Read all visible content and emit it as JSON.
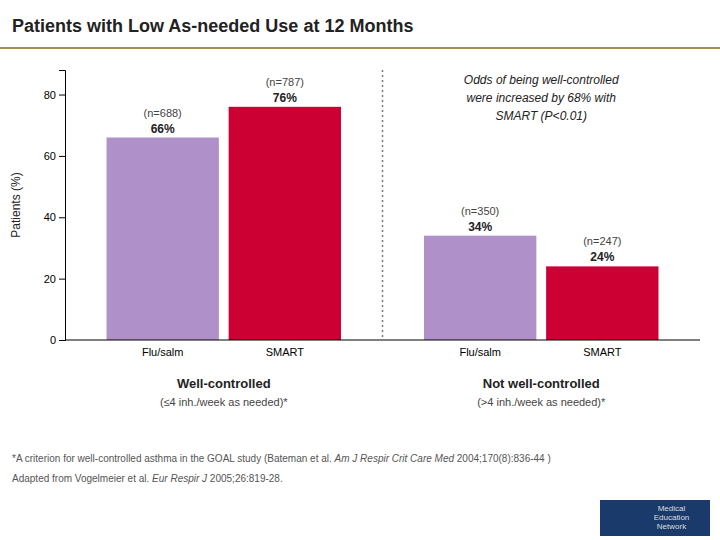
{
  "chart_data": {
    "type": "bar",
    "title": "Patients with Low As-needed Use at 12 Months",
    "ylabel": "Patients (%)",
    "categories": [
      "Well-controlled",
      "Not well-controlled"
    ],
    "category_sublabels": [
      "(≤4 inh./week as needed)*",
      "(>4 inh./week as needed)*"
    ],
    "series": [
      {
        "name": "Flu/salm",
        "color": "#b090c8",
        "values": [
          66,
          34
        ],
        "value_labels": [
          "66%",
          "34%"
        ],
        "n_labels": [
          "(n=688)",
          "(n=350)"
        ]
      },
      {
        "name": "SMART",
        "color": "#cc0033",
        "values": [
          76,
          24
        ],
        "value_labels": [
          "76%",
          "24%"
        ],
        "n_labels": [
          "(n=787)",
          "(n=247)"
        ]
      }
    ],
    "data_labels": true,
    "grid": false,
    "ylim": [
      0,
      88
    ],
    "yticks": [
      0,
      20,
      40,
      60,
      80
    ],
    "annotation": "Odds of being well-controlled\nwere increased by 68% with\nSMART (P<0.01)",
    "footnotes": [
      [
        "*A criterion for well-controlled asthma in the GOAL study (Bateman et al. ",
        "Am J Respir Crit Care Med",
        " 2004;170(8):836-44 )"
      ],
      [
        "Adapted from Vogelmeier et al. ",
        "Eur Respir J",
        " 2005;26:819-28."
      ]
    ],
    "logo_text": "Medical\nEducation\nNetwork"
  }
}
